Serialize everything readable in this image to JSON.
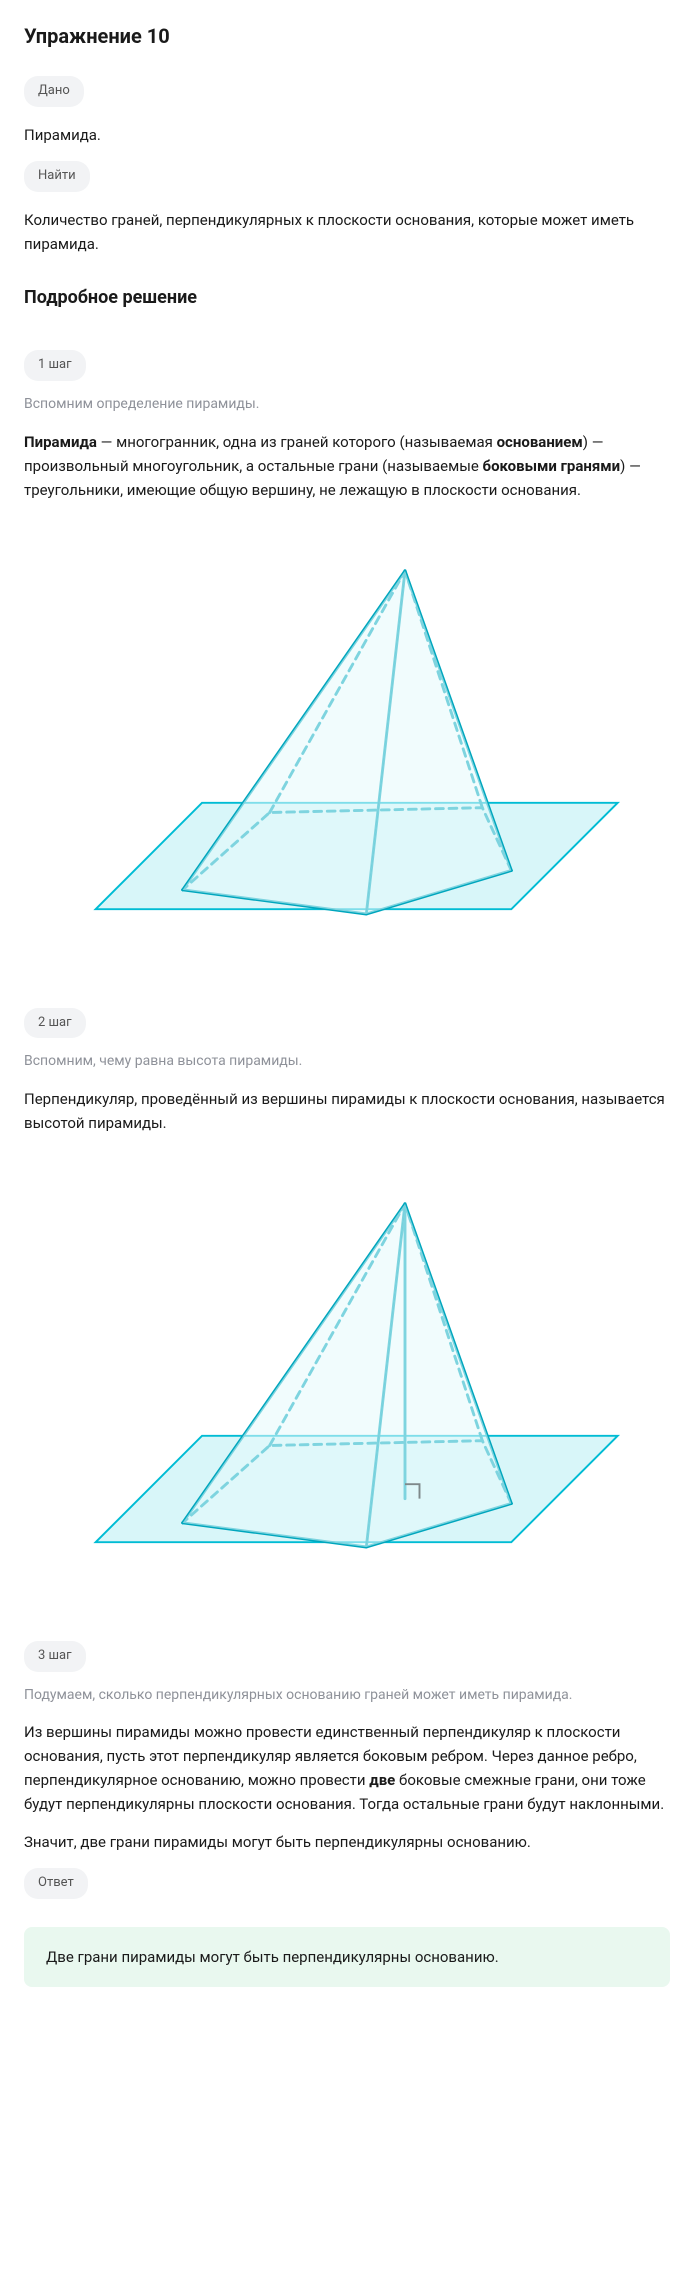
{
  "title": "Упражнение 10",
  "labels": {
    "given": "Дано",
    "find": "Найти",
    "answer": "Ответ"
  },
  "given_text": "Пирамида.",
  "find_text": "Количество граней, перпендикулярных к плоскости основания, которые может иметь пирамида.",
  "solution_title": "Подробное решение",
  "steps": [
    {
      "label": "1 шаг",
      "intro": "Вспомним определение пирамиды.",
      "body_html": "<strong>Пирамида</strong> — многогранник, одна из граней которого (называемая <strong>основанием</strong>) — произвольный многоугольник, а остальные грани (называемые <strong>боковыми гранями</strong>) — треугольники, имеющие общую вершину, не лежащую в плоскости основания."
    },
    {
      "label": "2 шаг",
      "intro": "Вспомним, чему равна высота пирамиды.",
      "body_html": "Перпендикуляр, проведённый из вершины пирамиды к плоскости основания, называется высотой пирамиды."
    },
    {
      "label": "3 шаг",
      "intro": "Подумаем, сколько перпендикулярных основанию граней может иметь пирамида.",
      "body_html": "Из вершины пирамиды можно провести единственный перпендикуляр к плоскости основания, пусть этот перпендикуляр является боковым ребром. Через данное ребро, перпендикулярное основанию, можно провести <strong>две</strong> боковые смежные грани, они тоже будут перпендикулярны плоскости основания. Тогда остальные грани будут наклонными.",
      "conclusion": "Значит, две грани пирамиды могут быть перпендикулярны основанию."
    }
  ],
  "answer_text": "Две грани пирамиды могут быть перпендикулярны основанию.",
  "diagram": {
    "stroke": "#00bcd4",
    "stroke_dark": "#00a6bd",
    "fill_light": "#e6fafc",
    "fill_plane": "#d8f6f9",
    "stroke_width": 3,
    "dash": "8 6"
  }
}
